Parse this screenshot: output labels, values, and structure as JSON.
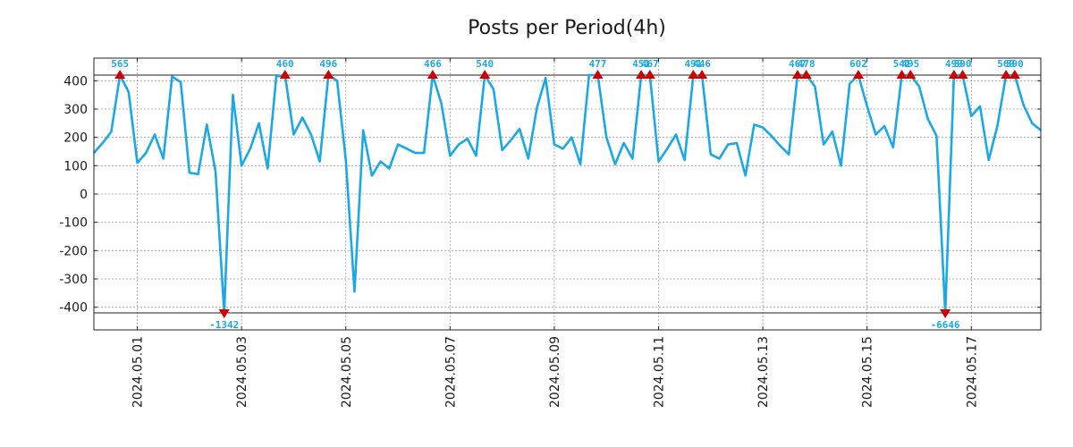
{
  "chart_data": {
    "type": "line",
    "title": "Posts per Period(4h)",
    "xlabel": "",
    "ylabel": "",
    "ylim": [
      -480,
      480
    ],
    "grid": true,
    "clip_range": [
      -420,
      420
    ],
    "x_ticks": [
      {
        "t": 5,
        "label": "2024.05.01"
      },
      {
        "t": 17,
        "label": "2024.05.03"
      },
      {
        "t": 29,
        "label": "2024.05.05"
      },
      {
        "t": 41,
        "label": "2024.05.07"
      },
      {
        "t": 53,
        "label": "2024.05.09"
      },
      {
        "t": 65,
        "label": "2024.05.11"
      },
      {
        "t": 77,
        "label": "2024.05.13"
      },
      {
        "t": 89,
        "label": "2024.05.15"
      },
      {
        "t": 101,
        "label": "2024.05.17"
      }
    ],
    "y_ticks": [
      -400,
      -300,
      -200,
      -100,
      0,
      100,
      200,
      300,
      400
    ],
    "x_range": [
      0,
      109
    ],
    "series": [
      {
        "name": "posts",
        "color": "#1ba8e6",
        "values": [
          145,
          180,
          220,
          420,
          360,
          110,
          145,
          210,
          125,
          415,
          395,
          75,
          70,
          245,
          80,
          -420,
          350,
          100,
          160,
          250,
          90,
          415,
          420,
          210,
          270,
          210,
          115,
          420,
          400,
          120,
          -345,
          225,
          65,
          115,
          90,
          175,
          160,
          145,
          145,
          420,
          320,
          135,
          175,
          195,
          135,
          420,
          370,
          155,
          190,
          230,
          125,
          305,
          410,
          175,
          160,
          200,
          105,
          420,
          420,
          200,
          105,
          180,
          125,
          420,
          420,
          115,
          160,
          210,
          120,
          420,
          420,
          140,
          125,
          175,
          180,
          65,
          245,
          235,
          205,
          170,
          140,
          420,
          420,
          380,
          175,
          220,
          100,
          390,
          420,
          310,
          210,
          240,
          165,
          420,
          420,
          380,
          265,
          205,
          -420,
          420,
          420,
          275,
          310,
          120,
          240,
          420,
          420,
          315,
          250,
          225
        ]
      }
    ],
    "annotations": [
      {
        "t": 3,
        "label": "565",
        "dir": "up"
      },
      {
        "t": 15,
        "label": "-1342",
        "dir": "down"
      },
      {
        "t": 22,
        "label": "460",
        "dir": "up"
      },
      {
        "t": 27,
        "label": "496",
        "dir": "up"
      },
      {
        "t": 39,
        "label": "466",
        "dir": "up"
      },
      {
        "t": 45,
        "label": "540",
        "dir": "up"
      },
      {
        "t": 58,
        "label": "477",
        "dir": "up"
      },
      {
        "t": 63,
        "label": "451",
        "dir": "up"
      },
      {
        "t": 64,
        "label": "467",
        "dir": "up"
      },
      {
        "t": 69,
        "label": "491",
        "dir": "up"
      },
      {
        "t": 70,
        "label": "446",
        "dir": "up"
      },
      {
        "t": 81,
        "label": "467",
        "dir": "up"
      },
      {
        "t": 82,
        "label": "478",
        "dir": "up"
      },
      {
        "t": 88,
        "label": "602",
        "dir": "up"
      },
      {
        "t": 93,
        "label": "541",
        "dir": "up"
      },
      {
        "t": 94,
        "label": "495",
        "dir": "up"
      },
      {
        "t": 98,
        "label": "-6646",
        "dir": "down"
      },
      {
        "t": 99,
        "label": "499",
        "dir": "up"
      },
      {
        "t": 100,
        "label": "590",
        "dir": "up"
      },
      {
        "t": 105,
        "label": "569",
        "dir": "up"
      },
      {
        "t": 106,
        "label": "590",
        "dir": "up"
      }
    ],
    "marker_color": "#cc0000",
    "label_color": "#1ba8e6"
  }
}
